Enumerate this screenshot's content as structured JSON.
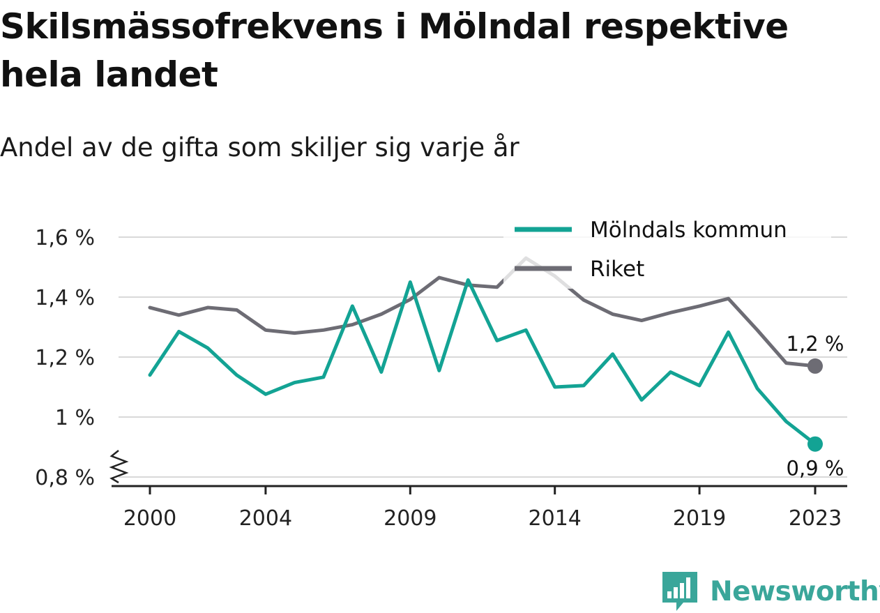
{
  "title": "Skilsmässofrekvens i Mölndal respektive hela landet",
  "subtitle": "Andel av de gifta som skiljer sig varje år",
  "brand": {
    "name": "Newsworthy",
    "color": "#3aa69a"
  },
  "chart_data": {
    "type": "line",
    "x": [
      2000,
      2001,
      2002,
      2003,
      2004,
      2005,
      2006,
      2007,
      2008,
      2009,
      2010,
      2011,
      2012,
      2013,
      2014,
      2015,
      2016,
      2017,
      2018,
      2019,
      2020,
      2021,
      2022,
      2023
    ],
    "x_ticks": [
      "2000",
      "2004",
      "2009",
      "2014",
      "2019",
      "2023"
    ],
    "y_ticks": [
      "0,8 %",
      "1 %",
      "1,2 %",
      "1,4 %",
      "1,6 %"
    ],
    "ylim": [
      0.8,
      1.6
    ],
    "grid": true,
    "legend_position": "top-right",
    "series": [
      {
        "name": "Mölndals kommun",
        "color": "#13a394",
        "values": [
          1.14,
          1.285,
          1.23,
          1.14,
          1.076,
          1.115,
          1.133,
          1.37,
          1.15,
          1.45,
          1.155,
          1.457,
          1.255,
          1.29,
          1.1,
          1.105,
          1.21,
          1.057,
          1.15,
          1.105,
          1.283,
          1.095,
          0.985,
          0.91
        ],
        "end_label": "0,9 %"
      },
      {
        "name": "Riket",
        "color": "#6d6c74",
        "values": [
          1.365,
          1.34,
          1.365,
          1.357,
          1.29,
          1.28,
          1.29,
          1.308,
          1.343,
          1.392,
          1.465,
          1.44,
          1.433,
          1.53,
          1.47,
          1.39,
          1.343,
          1.322,
          1.348,
          1.37,
          1.395,
          1.29,
          1.18,
          1.17
        ],
        "end_label": "1,2 %"
      }
    ]
  }
}
